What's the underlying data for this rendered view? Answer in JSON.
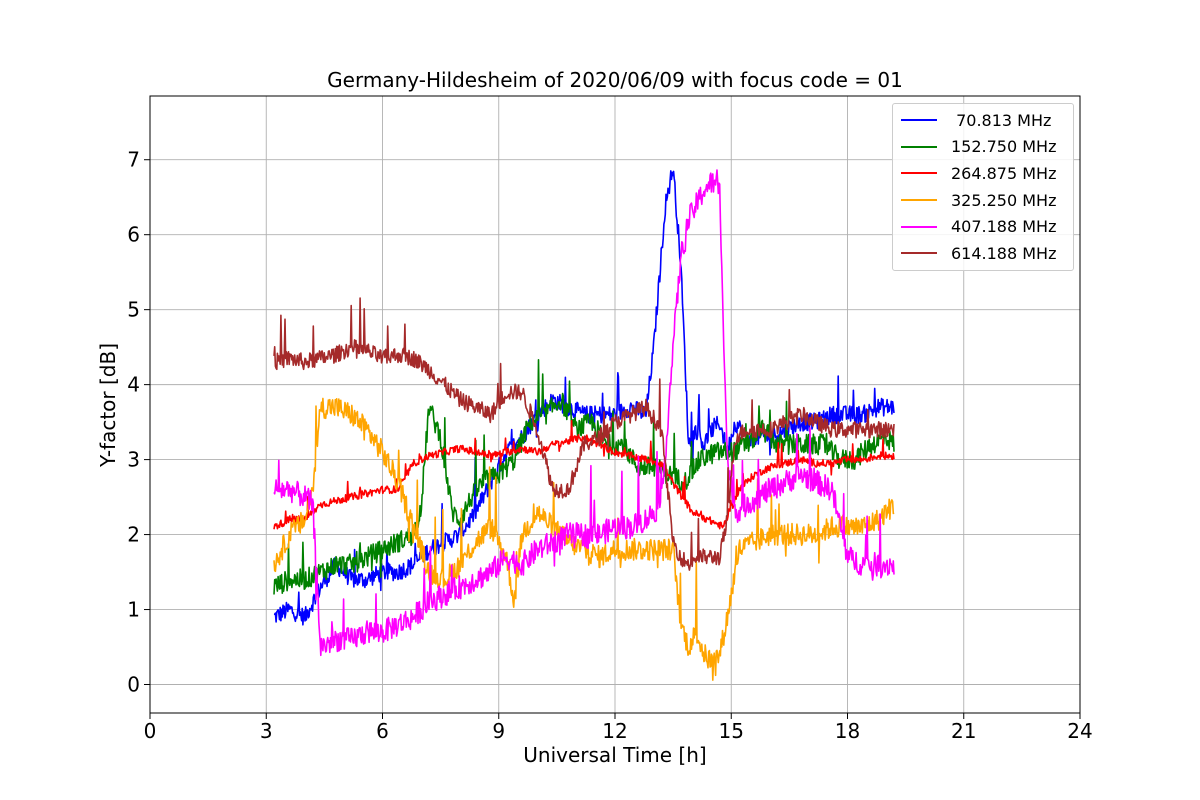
{
  "chart_data": {
    "type": "line",
    "title": "Germany-Hildesheim of 2020/06/09 with focus code = 01",
    "xlabel": "Universal Time [h]",
    "ylabel": "Y-factor [dB]",
    "xlim": [
      0,
      24
    ],
    "ylim": [
      -0.38,
      7.85
    ],
    "x_ticks": [
      "0",
      "3",
      "6",
      "9",
      "12",
      "15",
      "18",
      "21",
      "24"
    ],
    "y_ticks": [
      "0",
      "1",
      "2",
      "3",
      "4",
      "5",
      "6",
      "7"
    ],
    "grid": true,
    "legend_position": "top-right",
    "series": [
      {
        "name": " 70.813 MHz",
        "color": "#0000ff",
        "noise": 0.12,
        "x": [
          3.2,
          3.6,
          4.0,
          4.4,
          4.8,
          5.2,
          5.6,
          6.0,
          6.4,
          6.8,
          7.2,
          7.6,
          8.0,
          8.4,
          8.8,
          9.2,
          9.6,
          10.0,
          10.4,
          10.8,
          11.2,
          11.6,
          12.0,
          12.4,
          12.8,
          13.0,
          13.3,
          13.5,
          13.7,
          13.9,
          14.1,
          14.3,
          14.5,
          14.7,
          14.9,
          15.1,
          15.4,
          15.7,
          16.0,
          16.4,
          16.8,
          17.2,
          17.6,
          18.0,
          18.4,
          18.8,
          19.2
        ],
        "y": [
          0.9,
          1.0,
          0.9,
          1.3,
          1.6,
          1.4,
          1.4,
          1.5,
          1.5,
          1.6,
          1.8,
          1.9,
          2.0,
          2.3,
          2.7,
          3.1,
          3.3,
          3.6,
          3.8,
          3.7,
          3.6,
          3.6,
          3.6,
          3.7,
          3.6,
          4.5,
          6.4,
          6.9,
          5.6,
          3.2,
          3.4,
          3.2,
          3.4,
          3.5,
          3.1,
          3.5,
          3.3,
          3.3,
          3.3,
          3.4,
          3.5,
          3.5,
          3.6,
          3.6,
          3.6,
          3.7,
          3.7
        ]
      },
      {
        "name": "152.750 MHz",
        "color": "#008000",
        "noise": 0.14,
        "x": [
          3.2,
          3.6,
          4.0,
          4.4,
          4.8,
          5.2,
          5.6,
          6.0,
          6.4,
          6.8,
          7.0,
          7.2,
          7.5,
          7.8,
          8.0,
          8.3,
          8.6,
          9.0,
          9.4,
          9.8,
          10.2,
          10.6,
          11.0,
          11.4,
          11.8,
          12.2,
          12.6,
          13.0,
          13.4,
          13.8,
          14.2,
          14.6,
          15.0,
          15.4,
          15.8,
          16.2,
          16.6,
          17.0,
          17.4,
          17.8,
          18.2,
          18.6,
          19.0,
          19.2
        ],
        "y": [
          1.3,
          1.4,
          1.4,
          1.5,
          1.6,
          1.6,
          1.7,
          1.8,
          1.9,
          2.0,
          2.4,
          3.7,
          3.3,
          2.3,
          2.2,
          2.5,
          2.7,
          2.8,
          3.0,
          3.5,
          3.6,
          3.8,
          3.4,
          3.5,
          3.2,
          3.2,
          2.9,
          2.9,
          2.8,
          2.7,
          3.0,
          3.1,
          3.1,
          3.2,
          3.4,
          3.2,
          3.2,
          3.2,
          3.2,
          3.0,
          3.0,
          3.2,
          3.3,
          3.2
        ]
      },
      {
        "name": "264.875 MHz",
        "color": "#ff0000",
        "noise": 0.05,
        "x": [
          3.2,
          3.6,
          4.0,
          4.4,
          4.8,
          5.2,
          5.6,
          6.0,
          6.4,
          6.8,
          7.2,
          7.6,
          8.0,
          8.4,
          8.8,
          9.2,
          9.6,
          10.0,
          10.4,
          10.8,
          11.2,
          11.6,
          12.0,
          12.4,
          12.8,
          13.2,
          13.6,
          14.0,
          14.4,
          14.8,
          15.2,
          15.6,
          16.0,
          16.4,
          16.8,
          17.2,
          17.6,
          18.0,
          18.4,
          18.8,
          19.2
        ],
        "y": [
          2.1,
          2.2,
          2.2,
          2.4,
          2.45,
          2.5,
          2.55,
          2.6,
          2.6,
          2.95,
          3.05,
          3.1,
          3.15,
          3.1,
          3.05,
          3.1,
          3.15,
          3.1,
          3.2,
          3.25,
          3.3,
          3.2,
          3.1,
          3.05,
          3.0,
          2.95,
          2.6,
          2.3,
          2.2,
          2.1,
          2.6,
          2.8,
          2.9,
          2.95,
          3.0,
          2.95,
          2.95,
          3.0,
          3.0,
          3.05,
          3.05
        ]
      },
      {
        "name": "325.250 MHz",
        "color": "#ffa500",
        "noise": 0.15,
        "x": [
          3.2,
          3.6,
          4.0,
          4.2,
          4.4,
          4.8,
          5.2,
          5.6,
          6.0,
          6.4,
          6.8,
          7.2,
          7.6,
          8.0,
          8.4,
          8.8,
          9.2,
          9.4,
          9.6,
          10.0,
          10.4,
          10.8,
          11.2,
          11.6,
          12.0,
          12.4,
          12.8,
          13.2,
          13.5,
          13.7,
          13.9,
          14.1,
          14.3,
          14.5,
          14.7,
          14.9,
          15.2,
          15.6,
          16.0,
          16.4,
          16.8,
          17.2,
          17.6,
          18.0,
          18.4,
          18.8,
          19.2
        ],
        "y": [
          1.6,
          2.0,
          2.2,
          2.6,
          3.7,
          3.7,
          3.6,
          3.4,
          3.1,
          2.7,
          2.1,
          1.5,
          1.4,
          1.6,
          1.9,
          2.1,
          1.7,
          1.1,
          2.0,
          2.3,
          2.1,
          1.9,
          1.8,
          1.7,
          1.8,
          1.8,
          1.8,
          1.8,
          1.8,
          0.8,
          0.5,
          0.7,
          0.4,
          0.3,
          0.4,
          0.9,
          1.8,
          1.9,
          2.0,
          2.0,
          2.0,
          2.0,
          2.1,
          2.1,
          2.1,
          2.2,
          2.4
        ]
      },
      {
        "name": "407.188 MHz",
        "color": "#ff00ff",
        "noise": 0.16,
        "x": [
          3.2,
          3.6,
          4.0,
          4.2,
          4.4,
          4.8,
          5.2,
          5.6,
          6.0,
          6.4,
          6.8,
          7.2,
          7.6,
          8.0,
          8.4,
          8.8,
          9.2,
          9.6,
          10.0,
          10.4,
          10.8,
          11.2,
          11.6,
          12.0,
          12.4,
          12.8,
          13.2,
          13.5,
          13.7,
          13.9,
          14.1,
          14.3,
          14.5,
          14.7,
          14.9,
          15.1,
          15.4,
          15.7,
          16.0,
          16.4,
          16.8,
          17.2,
          17.6,
          18.0,
          18.4,
          18.8,
          19.2
        ],
        "y": [
          2.6,
          2.6,
          2.5,
          2.4,
          0.5,
          0.6,
          0.6,
          0.7,
          0.7,
          0.8,
          0.9,
          1.1,
          1.2,
          1.3,
          1.4,
          1.5,
          1.7,
          1.6,
          1.8,
          1.9,
          2.0,
          2.0,
          2.0,
          2.1,
          2.1,
          2.2,
          2.4,
          4.5,
          5.7,
          6.2,
          6.4,
          6.6,
          6.7,
          6.6,
          3.0,
          2.3,
          2.4,
          2.5,
          2.6,
          2.7,
          2.8,
          2.7,
          2.6,
          1.7,
          1.6,
          1.6,
          1.6
        ]
      },
      {
        "name": "614.188 MHz",
        "color": "#a52a2a",
        "noise": 0.11,
        "x": [
          3.2,
          3.6,
          4.0,
          4.4,
          4.8,
          5.2,
          5.6,
          6.0,
          6.4,
          6.8,
          7.2,
          7.6,
          8.0,
          8.4,
          8.8,
          9.2,
          9.6,
          10.0,
          10.4,
          10.8,
          11.2,
          11.6,
          12.0,
          12.4,
          12.8,
          13.2,
          13.5,
          13.7,
          13.9,
          14.1,
          14.3,
          14.5,
          14.7,
          14.9,
          15.1,
          15.4,
          15.7,
          16.0,
          16.4,
          16.8,
          17.2,
          17.6,
          18.0,
          18.4,
          18.8,
          19.2
        ],
        "y": [
          4.3,
          4.35,
          4.3,
          4.35,
          4.4,
          4.5,
          4.45,
          4.35,
          4.4,
          4.35,
          4.2,
          4.0,
          3.8,
          3.7,
          3.6,
          3.9,
          3.9,
          3.4,
          2.6,
          2.6,
          3.2,
          3.3,
          3.5,
          3.6,
          3.7,
          3.4,
          1.9,
          1.7,
          1.6,
          1.7,
          1.7,
          1.7,
          1.7,
          2.2,
          3.3,
          3.4,
          3.4,
          3.4,
          3.5,
          3.6,
          3.5,
          3.4,
          3.4,
          3.4,
          3.4,
          3.4
        ]
      }
    ]
  }
}
